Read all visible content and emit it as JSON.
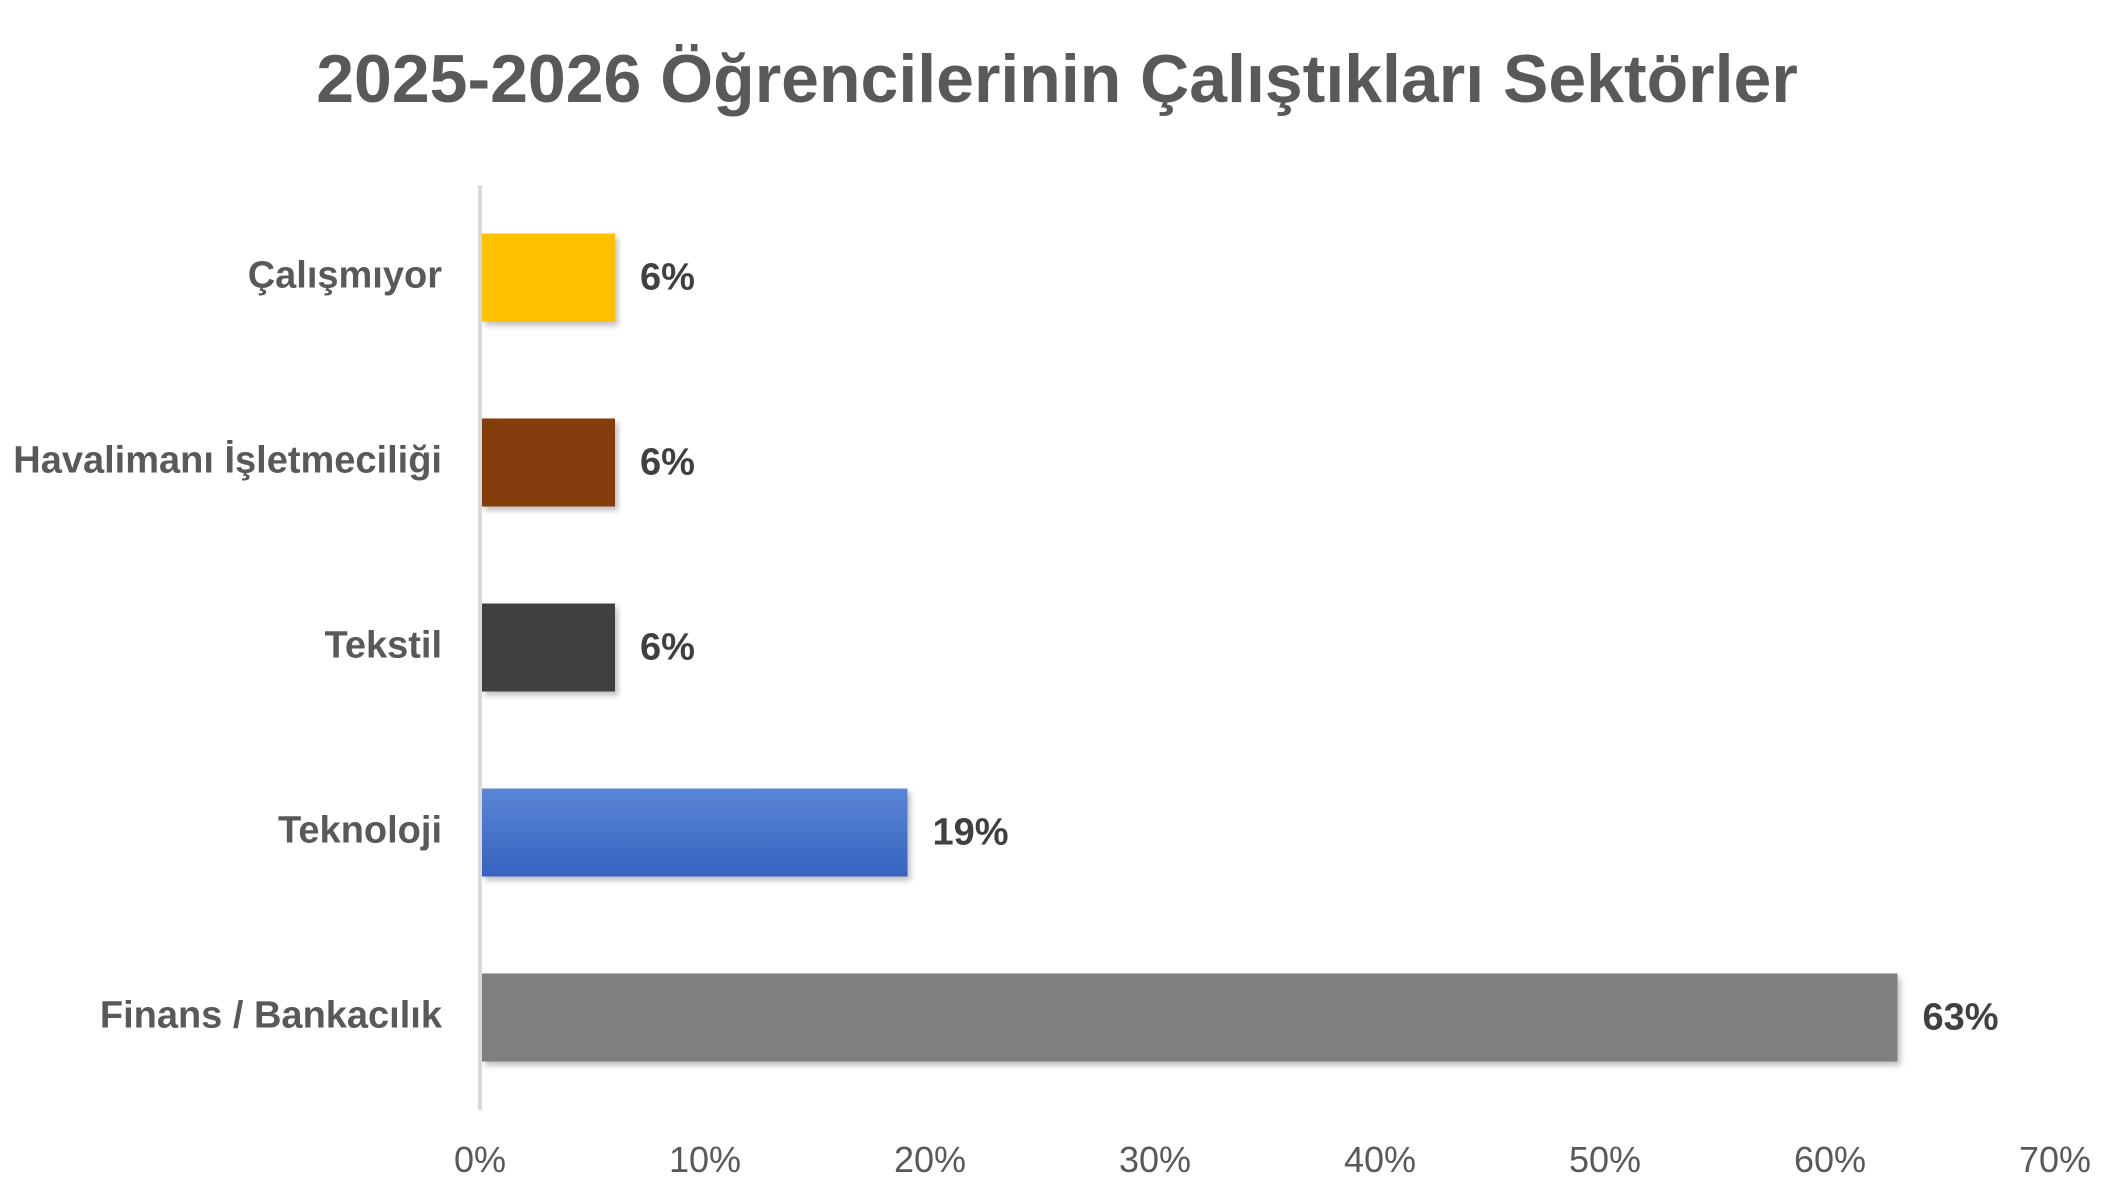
{
  "chart_data": {
    "type": "bar",
    "orientation": "horizontal",
    "title": "2025-2026 Öğrencilerinin Çalıştıkları Sektörler",
    "categories": [
      "Çalışmıyor",
      "Havalimanı İşletmeciliği",
      "Tekstil",
      "Teknoloji",
      "Finans / Bankacılık"
    ],
    "values": [
      6,
      6,
      6,
      19,
      63
    ],
    "value_labels": [
      "6%",
      "6%",
      "6%",
      "19%",
      "63%"
    ],
    "colors": [
      "#FFC000",
      "#843C0C",
      "#404040",
      "#4472C4",
      "#7F7F7F"
    ],
    "xlim": [
      0,
      70
    ],
    "x_ticks": [
      0,
      10,
      20,
      30,
      40,
      50,
      60,
      70
    ],
    "x_tick_labels": [
      "0%",
      "10%",
      "20%",
      "30%",
      "40%",
      "50%",
      "60%",
      "70%"
    ],
    "xlabel": "",
    "ylabel": "",
    "grid": false,
    "legend": "none"
  }
}
